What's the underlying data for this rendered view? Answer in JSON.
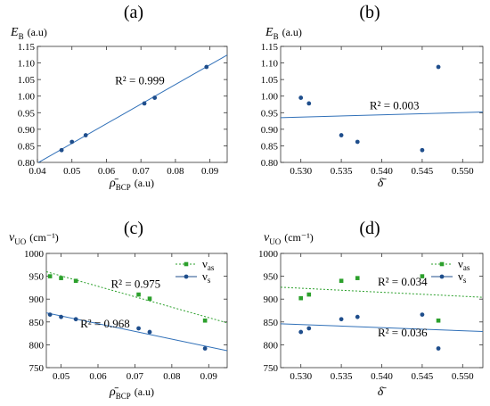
{
  "chart_data": [
    {
      "type": "scatter",
      "panel_label": "(a)",
      "ylabel_main": "E",
      "ylabel_sub": "B",
      "ylabel_unit": "(a.u)",
      "xlabel_main": "ρ̄",
      "xlabel_sub": "BCP",
      "xlabel_unit": "(a.u)",
      "xlim": [
        0.04,
        0.095
      ],
      "ylim": [
        0.8,
        1.15
      ],
      "xticks": [
        0.04,
        0.05,
        0.06,
        0.07,
        0.08,
        0.09
      ],
      "xticklabels": [
        "0.04",
        "0.05",
        "0.06",
        "0.07",
        "0.08",
        "0.09"
      ],
      "yticks": [
        0.8,
        0.85,
        0.9,
        0.95,
        1.0,
        1.05,
        1.1,
        1.15
      ],
      "yticklabels": [
        "0.80",
        "0.85",
        "0.90",
        "0.95",
        "1.00",
        "1.05",
        "1.10",
        "1.15"
      ],
      "series": [
        {
          "marker": "circle",
          "color": "#1f4e8c",
          "points": [
            [
              0.047,
              0.837
            ],
            [
              0.05,
              0.862
            ],
            [
              0.054,
              0.882
            ],
            [
              0.071,
              0.978
            ],
            [
              0.074,
              0.995
            ],
            [
              0.089,
              1.088
            ]
          ],
          "fit": [
            [
              0.04,
              0.798
            ],
            [
              0.095,
              1.124
            ]
          ],
          "fit_color": "#3070b8",
          "fit_dash": false
        }
      ],
      "annotations": [
        {
          "text": "R² = 0.999",
          "x": 0.0625,
          "y": 1.035
        }
      ],
      "legend": []
    },
    {
      "type": "scatter",
      "panel_label": "(b)",
      "ylabel_main": "E",
      "ylabel_sub": "B",
      "ylabel_unit": "(a.u)",
      "xlabel_main": "δ̄",
      "xlabel_sub": "",
      "xlabel_unit": "",
      "xlim": [
        0.5275,
        0.5525
      ],
      "ylim": [
        0.8,
        1.15
      ],
      "xticks": [
        0.53,
        0.535,
        0.54,
        0.545,
        0.55
      ],
      "xticklabels": [
        "0.530",
        "0.535",
        "0.540",
        "0.545",
        "0.550"
      ],
      "yticks": [
        0.8,
        0.85,
        0.9,
        0.95,
        1.0,
        1.05,
        1.1,
        1.15
      ],
      "yticklabels": [
        "0.80",
        "0.85",
        "0.90",
        "0.95",
        "1.00",
        "1.05",
        "1.10",
        "1.15"
      ],
      "series": [
        {
          "marker": "circle",
          "color": "#1f4e8c",
          "points": [
            [
              0.53,
              0.995
            ],
            [
              0.531,
              0.978
            ],
            [
              0.535,
              0.882
            ],
            [
              0.537,
              0.862
            ],
            [
              0.545,
              0.837
            ],
            [
              0.547,
              1.088
            ]
          ],
          "fit": [
            [
              0.5275,
              0.935
            ],
            [
              0.5525,
              0.952
            ]
          ],
          "fit_color": "#3070b8",
          "fit_dash": false
        }
      ],
      "annotations": [
        {
          "text": "R² = 0.003",
          "x": 0.5385,
          "y": 0.96
        }
      ],
      "legend": []
    },
    {
      "type": "scatter",
      "panel_label": "(c)",
      "ylabel_main": "ν",
      "ylabel_sub": "UO",
      "ylabel_unit": "(cm⁻¹)",
      "xlabel_main": "ρ̄",
      "xlabel_sub": "BCP",
      "xlabel_unit": "(a.u)",
      "xlim": [
        0.046,
        0.095
      ],
      "ylim": [
        750,
        1000
      ],
      "xticks": [
        0.05,
        0.06,
        0.07,
        0.08,
        0.09
      ],
      "xticklabels": [
        "0.05",
        "0.06",
        "0.07",
        "0.08",
        "0.09"
      ],
      "yticks": [
        750,
        800,
        850,
        900,
        950,
        1000
      ],
      "yticklabels": [
        "750",
        "800",
        "850",
        "900",
        "950",
        "1000"
      ],
      "series": [
        {
          "marker": "square",
          "color": "#2ca02c",
          "points": [
            [
              0.047,
              950
            ],
            [
              0.05,
              946
            ],
            [
              0.054,
              940
            ],
            [
              0.071,
              910
            ],
            [
              0.074,
              901
            ],
            [
              0.089,
              853
            ]
          ],
          "fit": [
            [
              0.046,
              960
            ],
            [
              0.095,
              848
            ]
          ],
          "fit_color": "#2ca02c",
          "fit_dash": true
        },
        {
          "marker": "circle",
          "color": "#1f4e8c",
          "points": [
            [
              0.047,
              866
            ],
            [
              0.05,
              861
            ],
            [
              0.054,
              856
            ],
            [
              0.071,
              836
            ],
            [
              0.074,
              828
            ],
            [
              0.089,
              792
            ]
          ],
          "fit": [
            [
              0.046,
              870
            ],
            [
              0.095,
              787
            ]
          ],
          "fit_color": "#3070b8",
          "fit_dash": false
        }
      ],
      "annotations": [
        {
          "text": "R² = 0.975",
          "x": 0.0635,
          "y": 925
        },
        {
          "text": "R² = 0.968",
          "x": 0.0552,
          "y": 838
        }
      ],
      "legend": [
        {
          "main": "ν",
          "sub": "as",
          "marker": "square",
          "color": "#2ca02c",
          "line_dash": true
        },
        {
          "main": "ν",
          "sub": "s",
          "marker": "circle",
          "color": "#1f4e8c",
          "line_dash": false
        }
      ]
    },
    {
      "type": "scatter",
      "panel_label": "(d)",
      "ylabel_main": "ν",
      "ylabel_sub": "UO",
      "ylabel_unit": "(cm⁻¹)",
      "xlabel_main": "δ̄",
      "xlabel_sub": "",
      "xlabel_unit": "",
      "xlim": [
        0.5275,
        0.5525
      ],
      "ylim": [
        750,
        1000
      ],
      "xticks": [
        0.53,
        0.535,
        0.54,
        0.545,
        0.55
      ],
      "xticklabels": [
        "0.530",
        "0.535",
        "0.540",
        "0.545",
        "0.550"
      ],
      "yticks": [
        750,
        800,
        850,
        900,
        950,
        1000
      ],
      "yticklabels": [
        "750",
        "800",
        "850",
        "900",
        "950",
        "1000"
      ],
      "series": [
        {
          "marker": "square",
          "color": "#2ca02c",
          "points": [
            [
              0.53,
              902
            ],
            [
              0.531,
              910
            ],
            [
              0.535,
              940
            ],
            [
              0.537,
              946
            ],
            [
              0.545,
              950
            ],
            [
              0.547,
              853
            ]
          ],
          "fit": [
            [
              0.5275,
              926
            ],
            [
              0.5525,
              904
            ]
          ],
          "fit_color": "#2ca02c",
          "fit_dash": true
        },
        {
          "marker": "circle",
          "color": "#1f4e8c",
          "points": [
            [
              0.53,
              828
            ],
            [
              0.531,
              836
            ],
            [
              0.535,
              856
            ],
            [
              0.537,
              861
            ],
            [
              0.545,
              866
            ],
            [
              0.547,
              792
            ]
          ],
          "fit": [
            [
              0.5275,
              846
            ],
            [
              0.5525,
              829
            ]
          ],
          "fit_color": "#3070b8",
          "fit_dash": false
        }
      ],
      "annotations": [
        {
          "text": "R² = 0.034",
          "x": 0.5395,
          "y": 930
        },
        {
          "text": "R² = 0.036",
          "x": 0.5395,
          "y": 818
        }
      ],
      "legend": [
        {
          "main": "ν",
          "sub": "as",
          "marker": "square",
          "color": "#2ca02c",
          "line_dash": true
        },
        {
          "main": "ν",
          "sub": "s",
          "marker": "circle",
          "color": "#1f4e8c",
          "line_dash": false
        }
      ]
    }
  ]
}
